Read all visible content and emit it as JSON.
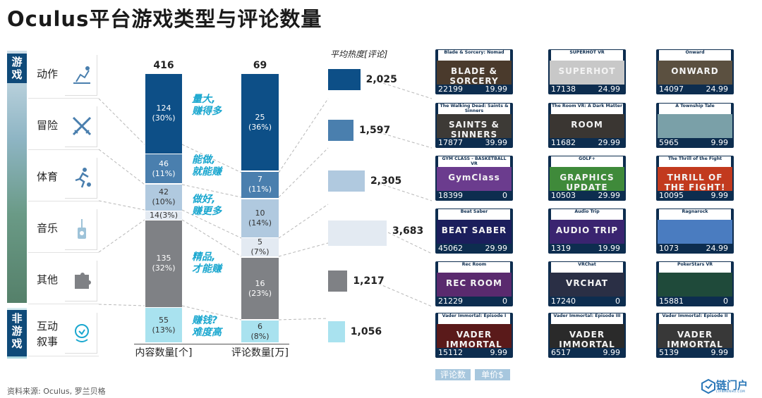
{
  "title": "Oculus平台游戏类型与评论数量",
  "side_labels": {
    "game": "游戏",
    "nongame": "非游戏"
  },
  "categories": [
    {
      "label": "动作",
      "icon": "action-icon"
    },
    {
      "label": "冒险",
      "icon": "crossed-swords-icon"
    },
    {
      "label": "体育",
      "icon": "runner-icon"
    },
    {
      "label": "音乐",
      "icon": "music-icon"
    },
    {
      "label": "其他",
      "icon": "puzzle-icon"
    },
    {
      "label": "互动\n叙事",
      "icon": "interactive-story-icon"
    }
  ],
  "colors": {
    "action": "#0d4f87",
    "adventure": "#4a7fae",
    "sports": "#b0c9df",
    "music": "#e3eaf2",
    "other": "#7f8185",
    "interactive": "#a9e2ef",
    "annotation": "#1aa7cf"
  },
  "annotations": [
    "量大,\n赚得多",
    "能做,\n就能赚",
    "做好,\n赚更多",
    "精品,\n才能赚",
    "赚钱?\n难度高"
  ],
  "chart_data": [
    {
      "type": "bar",
      "name": "内容数量",
      "xlabel": "内容数量[个]",
      "total": "416",
      "categories": [
        "动作",
        "冒险",
        "体育",
        "音乐",
        "其他",
        "互动叙事"
      ],
      "values": [
        124,
        46,
        42,
        14,
        135,
        55
      ],
      "labels": [
        "124\n(30%)",
        "46\n(11%)",
        "42\n(10%)",
        "14(3%)",
        "135\n(32%)",
        "55\n(13%)"
      ]
    },
    {
      "type": "bar",
      "name": "评论数量",
      "xlabel": "评论数量[万]",
      "total": "69",
      "categories": [
        "动作",
        "冒险",
        "体育",
        "音乐",
        "其他",
        "互动叙事"
      ],
      "values": [
        25,
        7,
        10,
        5,
        16,
        6
      ],
      "labels": [
        "25\n(36%)",
        "7\n(11%)",
        "10\n(14%)",
        "5\n(7%)",
        "16\n(23%)",
        "6\n(8%)"
      ]
    },
    {
      "type": "bar",
      "name": "平均热度",
      "title": "平均热度[评论]",
      "categories": [
        "动作",
        "冒险",
        "体育",
        "音乐",
        "其他",
        "互动叙事"
      ],
      "values": [
        2025,
        1597,
        2305,
        3683,
        1217,
        1056
      ],
      "labels": [
        "2,025",
        "1,597",
        "2,305",
        "3,683",
        "1,217",
        "1,056"
      ]
    }
  ],
  "games": [
    {
      "title": "Blade & Sorcery: Nomad",
      "art": "BLADE & SORCERY",
      "reviews": "22199",
      "price": "19.99",
      "bg": "#4a3a2c"
    },
    {
      "title": "SUPERHOT VR",
      "art": "SUPERHOT",
      "reviews": "17138",
      "price": "24.99",
      "bg": "#c8c8c8"
    },
    {
      "title": "Onward",
      "art": "ONWARD",
      "reviews": "14097",
      "price": "24.99",
      "bg": "#5b5040"
    },
    {
      "title": "The Walking Dead: Saints & Sinners",
      "art": "SAINTS & SINNERS",
      "reviews": "17877",
      "price": "39.99",
      "bg": "#3d3a36"
    },
    {
      "title": "The Room VR: A Dark Matter",
      "art": "ROOM",
      "reviews": "11682",
      "price": "29.99",
      "bg": "#3a3632"
    },
    {
      "title": "A Township Tale",
      "art": "",
      "reviews": "5965",
      "price": "9.99",
      "bg": "#7aa0a8"
    },
    {
      "title": "GYM CLASS - BASKETBALL VR",
      "art": "GymClass",
      "reviews": "18399",
      "price": "0",
      "bg": "#6b3c8e"
    },
    {
      "title": "GOLF+",
      "art": "GRAPHICS UPDATE",
      "reviews": "10503",
      "price": "29.99",
      "bg": "#3f8a3a"
    },
    {
      "title": "The Thrill of the Fight",
      "art": "THRILL OF THE FIGHT!",
      "reviews": "10095",
      "price": "9.99",
      "bg": "#c23a1e"
    },
    {
      "title": "Beat Saber",
      "art": "BEAT SABER",
      "reviews": "45062",
      "price": "29.99",
      "bg": "#1b1e5c"
    },
    {
      "title": "Audio Trip",
      "art": "AUDIO TRIP",
      "reviews": "1319",
      "price": "19.99",
      "bg": "#3a2470"
    },
    {
      "title": "Ragnarock",
      "art": "",
      "reviews": "1073",
      "price": "24.99",
      "bg": "#4a7cc0"
    },
    {
      "title": "Rec Room",
      "art": "REC ROOM",
      "reviews": "21229",
      "price": "0",
      "bg": "#5a2a6e"
    },
    {
      "title": "VRChat",
      "art": "VRCHAT",
      "reviews": "17240",
      "price": "0",
      "bg": "#2a2f45"
    },
    {
      "title": "PokerStars VR",
      "art": "",
      "reviews": "15881",
      "price": "0",
      "bg": "#1f4a3a"
    },
    {
      "title": "Vader Immortal: Episode I",
      "art": "VADER IMMORTAL",
      "reviews": "15112",
      "price": "9.99",
      "bg": "#5a1a1a"
    },
    {
      "title": "Vader Immortal: Episode III",
      "art": "VADER IMMORTAL",
      "reviews": "6517",
      "price": "9.99",
      "bg": "#2a2a2a"
    },
    {
      "title": "Vader Immortal: Episode II",
      "art": "VADER IMMORTAL",
      "reviews": "5139",
      "price": "9.99",
      "bg": "#383838"
    }
  ],
  "legend": {
    "reviews": "评论数",
    "price": "单价$"
  },
  "source": "资料来源:  Oculus,  罗兰贝格",
  "logo": {
    "text": "链门户",
    "sub": "LIANMENHU.COM"
  }
}
